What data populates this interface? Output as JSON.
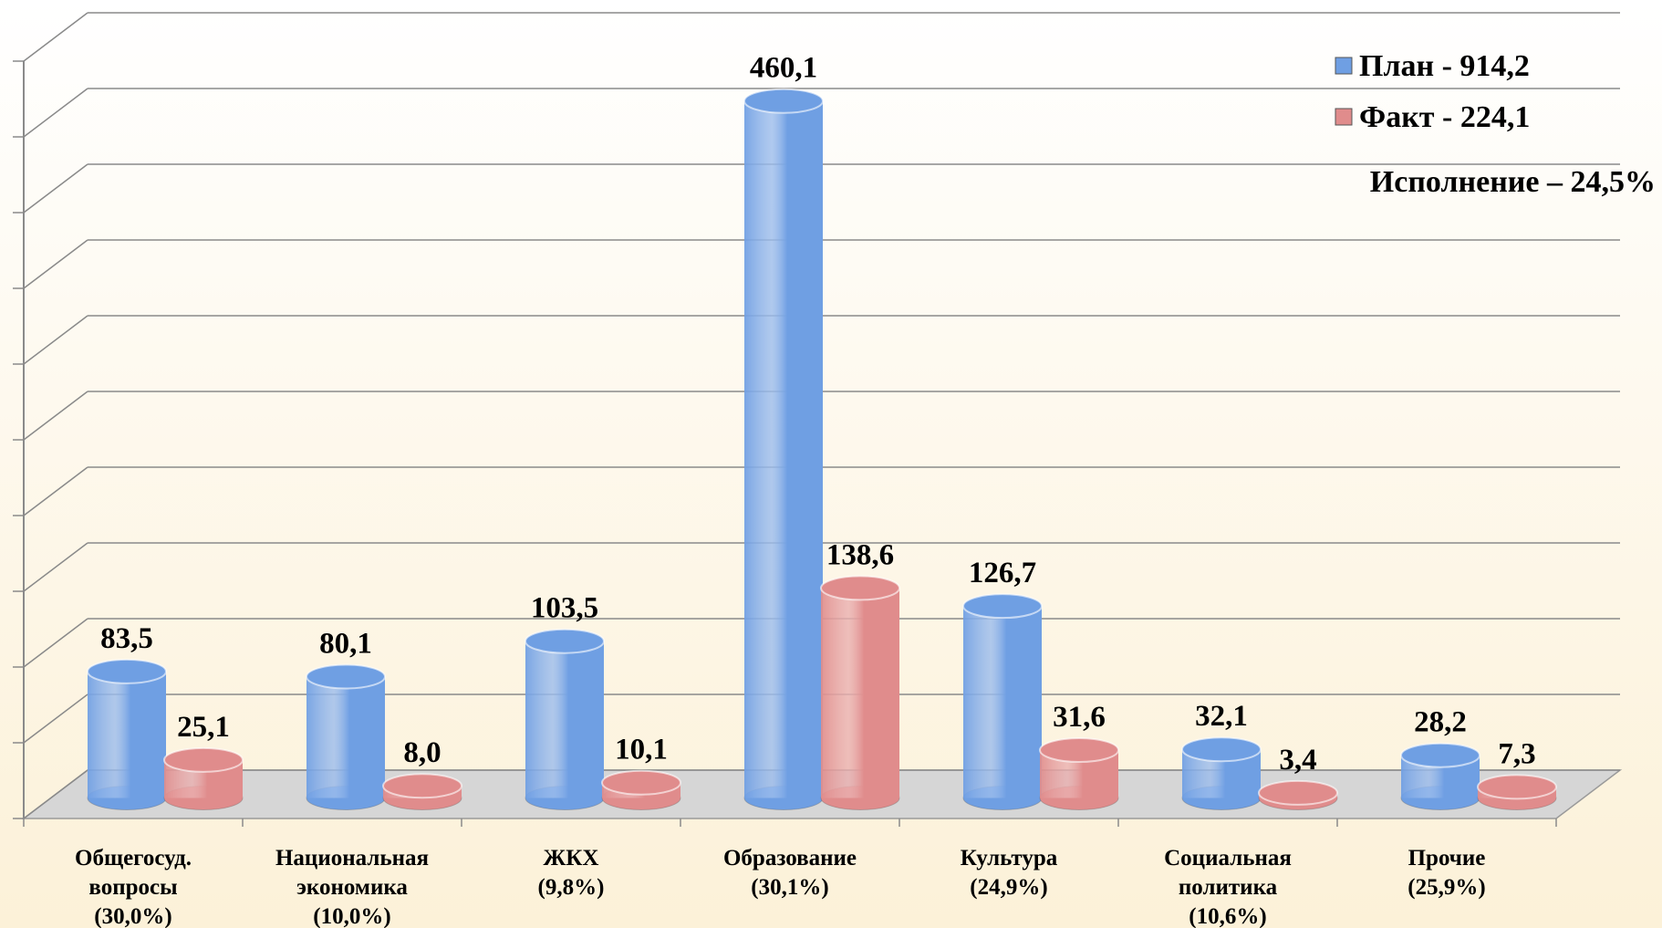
{
  "chart_data": {
    "type": "bar3d",
    "annotation": "Исполнение – 24,5%",
    "categories": [
      [
        "Общегосуд.",
        "вопросы",
        "(30,0%)"
      ],
      [
        "Национальная",
        "экономика",
        "(10,0%)"
      ],
      [
        "ЖКХ",
        "(9,8%)"
      ],
      [
        "Образование",
        "(30,1%)"
      ],
      [
        "Культура",
        "(24,9%)"
      ],
      [
        "Социальная",
        "политика",
        "(10,6%)"
      ],
      [
        "Прочие",
        "(25,9%)"
      ]
    ],
    "series": [
      {
        "name": "План - 914,2",
        "color": "#6f9fe3",
        "values": [
          83.5,
          80.1,
          103.5,
          460.1,
          126.7,
          32.1,
          28.2
        ],
        "value_labels": [
          "83,5",
          "80,1",
          "103,5",
          "460,1",
          "126,7",
          "32,1",
          "28,2"
        ]
      },
      {
        "name": "Факт - 224,1",
        "color": "#e08c8c",
        "values": [
          25.1,
          8.0,
          10.1,
          138.6,
          31.6,
          3.4,
          7.3
        ],
        "value_labels": [
          "25,1",
          "8,0",
          "10,1",
          "138,6",
          "31,6",
          "3,4",
          "7,3"
        ]
      }
    ],
    "ylim": [
      0,
      500
    ],
    "yticks": [
      0,
      50,
      100,
      150,
      200,
      250,
      300,
      350,
      400,
      450,
      500
    ],
    "grid": true,
    "legend": "top-right"
  }
}
